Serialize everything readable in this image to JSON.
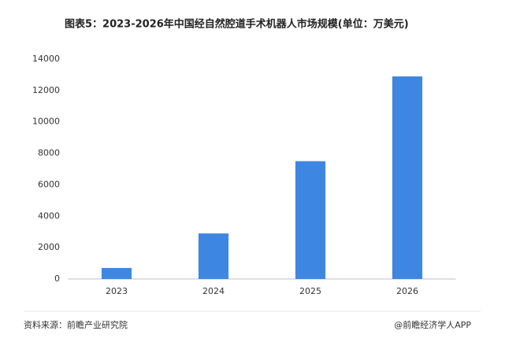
{
  "chart_data": {
    "type": "bar",
    "title": "图表5：2023-2026年中国经自然腔道手术机器人市场规模(单位：万美元)",
    "categories": [
      "2023",
      "2024",
      "2025",
      "2026"
    ],
    "values": [
      700,
      2900,
      7500,
      12900
    ],
    "color": "#3d87e2",
    "ylim": [
      0,
      14000
    ],
    "yticks": [
      0,
      2000,
      4000,
      6000,
      8000,
      10000,
      12000,
      14000
    ],
    "grid": false,
    "source": "资料来源：前瞻产业研究院",
    "credit": "@前瞻经济学人APP"
  }
}
